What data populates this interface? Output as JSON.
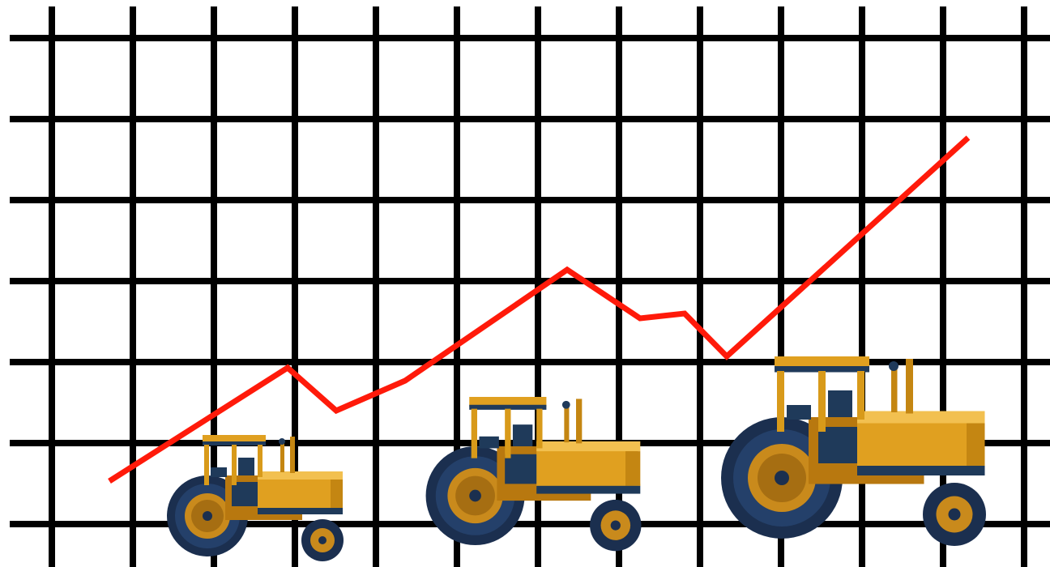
{
  "chart_data": {
    "type": "line",
    "x": [
      0.71,
      2.91,
      3.51,
      4.36,
      6.36,
      7.26,
      7.81,
      8.33,
      11.31
    ],
    "values": [
      0.53,
      1.93,
      1.4,
      1.77,
      3.14,
      2.54,
      2.6,
      2.07,
      4.77
    ],
    "color": "#ff1a0a",
    "xlim": [
      -0.64,
      12.32
    ],
    "ylim": [
      -0.53,
      6.47
    ],
    "xticks": [
      0,
      1,
      2,
      3,
      4,
      5,
      6,
      7,
      8,
      9,
      10,
      11,
      12
    ],
    "yticks": [
      0,
      1,
      2,
      3,
      4,
      5,
      6
    ],
    "grid": true
  }
}
